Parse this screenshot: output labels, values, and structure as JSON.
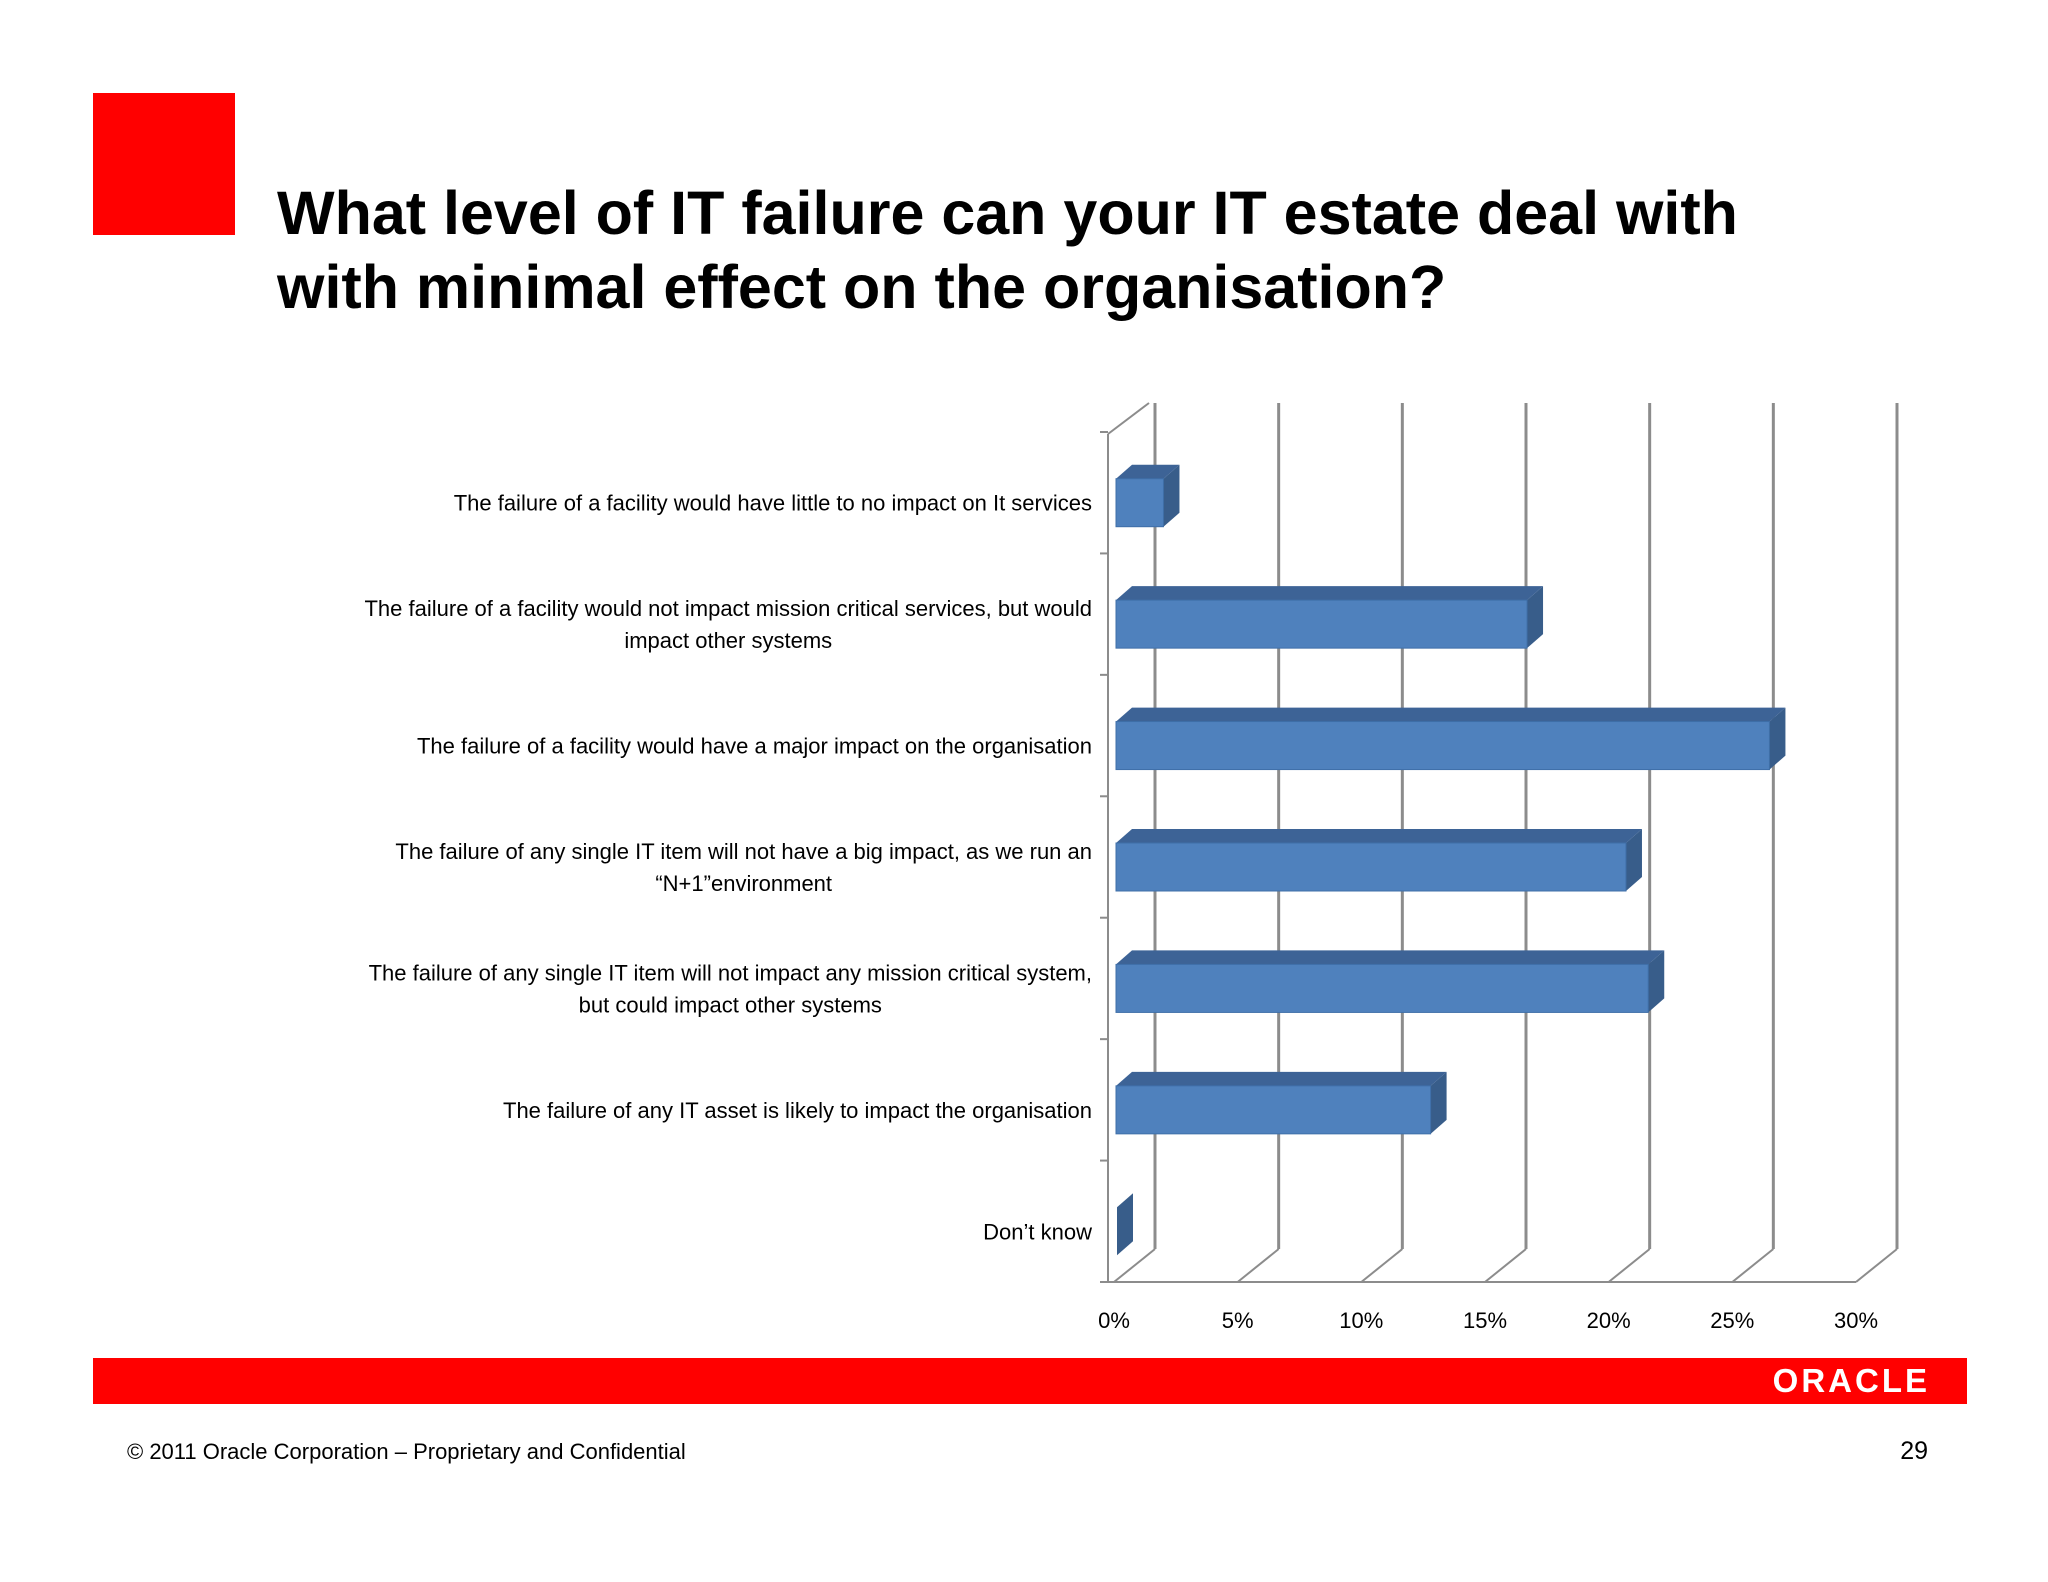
{
  "slide": {
    "title_lines": [
      "What level of IT failure can your IT estate deal with",
      "with minimal effect on the organisation?"
    ],
    "copyright": "© 2011 Oracle Corporation – Proprietary and Confidential",
    "page_number": "29",
    "logo_text": "ORACLE",
    "colors": {
      "accent": "#ff0000",
      "bar_front": "#4f81bd",
      "bar_side": "#385d8a"
    }
  },
  "chart_data": {
    "type": "bar",
    "orientation": "horizontal",
    "three_d": true,
    "categories": [
      [
        "The failure of a facility would have little to no impact on It services"
      ],
      [
        "The failure of a facility would not impact mission critical services, but would",
        "impact other systems"
      ],
      [
        "The failure of a facility would have a major impact on the organisation"
      ],
      [
        "The failure of any single IT item will not have a big impact, as we run an",
        "“N+1”environment"
      ],
      [
        "The failure of any single IT item will not impact any mission critical system,",
        "but could impact other systems"
      ],
      [
        "The failure of any IT asset  is likely to impact the organisation"
      ],
      [
        "Don’t know"
      ]
    ],
    "values": [
      2,
      16.7,
      26.5,
      20.7,
      21.6,
      12.8,
      0
    ],
    "x_ticks": [
      "0%",
      "5%",
      "10%",
      "15%",
      "20%",
      "25%",
      "30%"
    ],
    "xlim": [
      0,
      30
    ],
    "grid": true,
    "legend": "none"
  }
}
